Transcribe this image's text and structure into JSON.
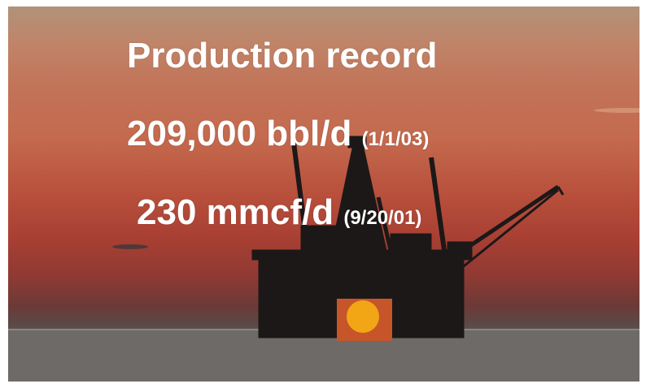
{
  "slide": {
    "title": "Production record",
    "oil_rate": "209,000 bbl/d",
    "oil_date": "(1/1/03)",
    "gas_rate": "230 mmcf/d",
    "gas_date": "(9/20/01)"
  },
  "photo": {
    "subject": "offshore oil platform silhouette at sunset",
    "colors": {
      "sky_top": "#b0927a",
      "sky_mid": "#c46a4e",
      "sky_low": "#a83f33",
      "sea": "#6a6664",
      "sun": "#f2a616",
      "silhouette": "#1d1818"
    }
  }
}
